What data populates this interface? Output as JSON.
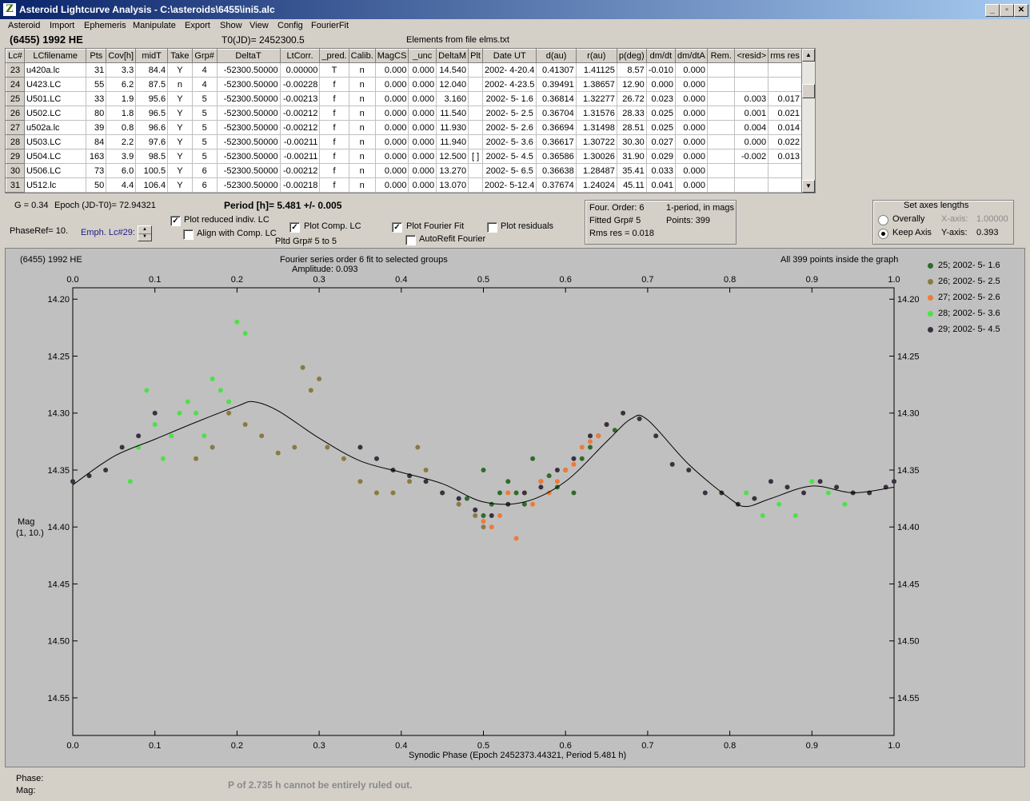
{
  "window": {
    "title": "Asteroid Lightcurve Analysis - C:\\asteroids\\6455\\ini5.alc",
    "app_icon_glyph": "Z",
    "minimize": "_",
    "restore": "▫",
    "close": "✕"
  },
  "menu": [
    "Asteroid",
    "Import",
    "Ephemeris",
    "Manipulate",
    "Export",
    "Show",
    "View",
    "Config",
    "FourierFit"
  ],
  "header": {
    "asteroid": "(6455) 1992 HE",
    "t0": "T0(JD)= 2452300.5",
    "elements": "Elements from file elms.txt"
  },
  "table": {
    "columns": [
      "Lc#",
      "LCfilename",
      "Pts",
      "Cov[h]",
      "midT",
      "Take",
      "Grp#",
      "DeltaT",
      "LtCorr.",
      "_pred.",
      "Calib.",
      "MagCS",
      "_unc",
      "DeltaM",
      "Plt",
      "Date UT",
      "d(au)",
      "r(au)",
      "p(deg)",
      "dm/dt",
      "dm/dtA",
      "Rem.",
      "<resid>",
      "rms res"
    ],
    "rows": [
      [
        "23",
        "u420a.lc",
        "31",
        "3.3",
        "84.4",
        "Y",
        "4",
        "-52300.50000",
        "0.00000",
        "T",
        "n",
        "0.000",
        "0.000",
        "14.540",
        "",
        "2002- 4-20.4",
        "0.41307",
        "1.41125",
        "8.57",
        "-0.010",
        "0.000",
        "",
        "",
        ""
      ],
      [
        "24",
        "U423.LC",
        "55",
        "6.2",
        "87.5",
        "n",
        "4",
        "-52300.50000",
        "-0.00228",
        "f",
        "n",
        "0.000",
        "0.000",
        "12.040",
        "",
        "2002- 4-23.5",
        "0.39491",
        "1.38657",
        "12.90",
        "0.000",
        "0.000",
        "",
        "",
        ""
      ],
      [
        "25",
        "U501.LC",
        "33",
        "1.9",
        "95.6",
        "Y",
        "5",
        "-52300.50000",
        "-0.00213",
        "f",
        "n",
        "0.000",
        "0.000",
        "3.160",
        "",
        "2002- 5- 1.6",
        "0.36814",
        "1.32277",
        "26.72",
        "0.023",
        "0.000",
        "",
        "0.003",
        "0.017"
      ],
      [
        "26",
        "U502.LC",
        "80",
        "1.8",
        "96.5",
        "Y",
        "5",
        "-52300.50000",
        "-0.00212",
        "f",
        "n",
        "0.000",
        "0.000",
        "11.540",
        "",
        "2002- 5- 2.5",
        "0.36704",
        "1.31576",
        "28.33",
        "0.025",
        "0.000",
        "",
        "0.001",
        "0.021"
      ],
      [
        "27",
        "u502a.lc",
        "39",
        "0.8",
        "96.6",
        "Y",
        "5",
        "-52300.50000",
        "-0.00212",
        "f",
        "n",
        "0.000",
        "0.000",
        "11.930",
        "",
        "2002- 5- 2.6",
        "0.36694",
        "1.31498",
        "28.51",
        "0.025",
        "0.000",
        "",
        "0.004",
        "0.014"
      ],
      [
        "28",
        "U503.LC",
        "84",
        "2.2",
        "97.6",
        "Y",
        "5",
        "-52300.50000",
        "-0.00211",
        "f",
        "n",
        "0.000",
        "0.000",
        "11.940",
        "",
        "2002- 5- 3.6",
        "0.36617",
        "1.30722",
        "30.30",
        "0.027",
        "0.000",
        "",
        "0.000",
        "0.022"
      ],
      [
        "29",
        "U504.LC",
        "163",
        "3.9",
        "98.5",
        "Y",
        "5",
        "-52300.50000",
        "-0.00211",
        "f",
        "n",
        "0.000",
        "0.000",
        "12.500",
        "[ ]",
        "2002- 5- 4.5",
        "0.36586",
        "1.30026",
        "31.90",
        "0.029",
        "0.000",
        "",
        "-0.002",
        "0.013"
      ],
      [
        "30",
        "U506.LC",
        "73",
        "6.0",
        "100.5",
        "Y",
        "6",
        "-52300.50000",
        "-0.00212",
        "f",
        "n",
        "0.000",
        "0.000",
        "13.270",
        "",
        "2002- 5- 6.5",
        "0.36638",
        "1.28487",
        "35.41",
        "0.033",
        "0.000",
        "",
        "",
        ""
      ],
      [
        "31",
        "U512.lc",
        "50",
        "4.4",
        "106.4",
        "Y",
        "6",
        "-52300.50000",
        "-0.00218",
        "f",
        "n",
        "0.000",
        "0.000",
        "13.070",
        "",
        "2002- 5-12.4",
        "0.37674",
        "1.24024",
        "45.11",
        "0.041",
        "0.000",
        "",
        "",
        ""
      ]
    ]
  },
  "controls": {
    "g": "G = 0.34",
    "epoch": "Epoch (JD-T0)= 72.94321",
    "period": "Period [h]= 5.481 +/- 0.005",
    "phaseref": "PhaseRef= 10.",
    "emph": "Emph. Lc#29:",
    "plot_reduced": {
      "label": "Plot reduced indiv. LC",
      "checked": true
    },
    "align_comp": {
      "label": "Align with Comp. LC",
      "checked": false
    },
    "plot_comp": {
      "label": "Plot Comp. LC",
      "checked": true
    },
    "pltd_grp": "Pltd Grp#  5  to  5",
    "plot_fourier": {
      "label": "Plot Fourier Fit",
      "checked": true
    },
    "autorefit": {
      "label": "AutoRefit Fourier",
      "checked": false
    },
    "plot_residuals": {
      "label": "Plot residuals",
      "checked": false
    },
    "four_order": "Four. Order:  6",
    "one_period": "1-period, in mags",
    "fitted_grp": "Fitted Grp# 5",
    "points": "Points: 399",
    "rms_res": "Rms res     = 0.018",
    "axes": {
      "title": "Set axes lengths",
      "overall": "Overally",
      "keep": "Keep Axis",
      "x_label": "X-axis:",
      "x_value": "1.00000",
      "y_label": "Y-axis:",
      "y_value": "0.393",
      "selected": "keep"
    }
  },
  "plot": {
    "name": "(6455) 1992 HE",
    "fourier_title": "Fourier series order 6 fit to selected groups",
    "amplitude": "Amplitude: 0.093",
    "points_inside": "All 399 points inside the graph",
    "ylabel": "Mag",
    "ylabel2": "(1, 10.)",
    "xlabel": "Synodic Phase (Epoch 2452373.44321, Period 5.481 h)"
  },
  "chart_data": {
    "type": "scatter",
    "title": "Fourier series order 6 fit to selected groups",
    "xlabel": "Synodic Phase (Epoch 2452373.44321, Period 5.481 h)",
    "ylabel": "Mag",
    "xlim": [
      0.0,
      1.0
    ],
    "ylim": [
      14.583,
      14.19
    ],
    "y_inverted": true,
    "x_ticks": [
      "0.0",
      "0.1",
      "0.2",
      "0.3",
      "0.4",
      "0.5",
      "0.6",
      "0.7",
      "0.8",
      "0.9",
      "1.0"
    ],
    "y_ticks": [
      "14.20",
      "14.25",
      "14.30",
      "14.35",
      "14.40",
      "14.45",
      "14.50",
      "14.55"
    ],
    "grid": false,
    "legend_position": "right",
    "series": [
      {
        "name": "25; 2002- 5- 1.6",
        "color": "#2f6b2a",
        "x": [
          0.48,
          0.49,
          0.5,
          0.5,
          0.51,
          0.52,
          0.53,
          0.54,
          0.55,
          0.56,
          0.57,
          0.58,
          0.59,
          0.6,
          0.61,
          0.62,
          0.63,
          0.64,
          0.65,
          0.66
        ],
        "y": [
          14.375,
          14.385,
          14.35,
          14.39,
          14.38,
          14.37,
          14.36,
          14.37,
          14.38,
          14.34,
          14.36,
          14.355,
          14.365,
          14.35,
          14.37,
          14.34,
          14.33,
          14.32,
          14.31,
          14.315
        ]
      },
      {
        "name": "26; 2002- 5- 2.5",
        "color": "#8a7a40",
        "x": [
          0.15,
          0.17,
          0.19,
          0.21,
          0.23,
          0.25,
          0.27,
          0.28,
          0.29,
          0.3,
          0.31,
          0.33,
          0.35,
          0.37,
          0.39,
          0.41,
          0.42,
          0.43,
          0.45,
          0.47,
          0.49,
          0.5
        ],
        "y": [
          14.34,
          14.33,
          14.3,
          14.31,
          14.32,
          14.335,
          14.33,
          14.26,
          14.28,
          14.27,
          14.33,
          14.34,
          14.36,
          14.37,
          14.37,
          14.36,
          14.33,
          14.35,
          14.37,
          14.38,
          14.39,
          14.4
        ]
      },
      {
        "name": "27; 2002- 5- 2.6",
        "color": "#f07a38",
        "x": [
          0.5,
          0.51,
          0.52,
          0.53,
          0.54,
          0.55,
          0.56,
          0.57,
          0.58,
          0.59,
          0.6,
          0.61,
          0.62,
          0.63,
          0.64,
          0.65
        ],
        "y": [
          14.395,
          14.4,
          14.39,
          14.37,
          14.41,
          14.37,
          14.38,
          14.36,
          14.37,
          14.36,
          14.35,
          14.345,
          14.33,
          14.325,
          14.32,
          14.31
        ]
      },
      {
        "name": "28; 2002- 5- 3.6",
        "color": "#4ee048",
        "x": [
          0.07,
          0.08,
          0.09,
          0.1,
          0.11,
          0.12,
          0.13,
          0.14,
          0.15,
          0.16,
          0.17,
          0.18,
          0.19,
          0.2,
          0.21,
          0.82,
          0.84,
          0.86,
          0.88,
          0.9,
          0.92,
          0.94,
          0.95
        ],
        "y": [
          14.36,
          14.33,
          14.28,
          14.31,
          14.34,
          14.32,
          14.3,
          14.29,
          14.3,
          14.32,
          14.27,
          14.28,
          14.29,
          14.22,
          14.23,
          14.37,
          14.39,
          14.38,
          14.39,
          14.36,
          14.37,
          14.38,
          14.37
        ]
      },
      {
        "name": "29; 2002- 5- 4.5",
        "color": "#3c3040",
        "x": [
          0.0,
          0.02,
          0.04,
          0.06,
          0.08,
          0.1,
          0.35,
          0.37,
          0.39,
          0.41,
          0.43,
          0.45,
          0.47,
          0.49,
          0.51,
          0.53,
          0.55,
          0.57,
          0.59,
          0.61,
          0.63,
          0.65,
          0.67,
          0.69,
          0.71,
          0.73,
          0.75,
          0.77,
          0.79,
          0.81,
          0.83,
          0.85,
          0.87,
          0.89,
          0.91,
          0.93,
          0.95,
          0.97,
          0.99,
          1.0
        ],
        "y": [
          14.36,
          14.355,
          14.35,
          14.33,
          14.32,
          14.3,
          14.33,
          14.34,
          14.35,
          14.355,
          14.36,
          14.37,
          14.375,
          14.385,
          14.39,
          14.38,
          14.37,
          14.365,
          14.35,
          14.34,
          14.32,
          14.31,
          14.3,
          14.305,
          14.32,
          14.345,
          14.35,
          14.37,
          14.37,
          14.38,
          14.375,
          14.36,
          14.365,
          14.37,
          14.36,
          14.365,
          14.37,
          14.37,
          14.365,
          14.36
        ]
      }
    ],
    "fit_curve": {
      "x": [
        0.0,
        0.05,
        0.1,
        0.15,
        0.2,
        0.22,
        0.25,
        0.3,
        0.35,
        0.4,
        0.45,
        0.5,
        0.55,
        0.6,
        0.65,
        0.68,
        0.7,
        0.75,
        0.8,
        0.82,
        0.85,
        0.9,
        0.95,
        1.0
      ],
      "y": [
        14.363,
        14.338,
        14.323,
        14.308,
        14.294,
        14.29,
        14.298,
        14.322,
        14.342,
        14.352,
        14.362,
        14.378,
        14.378,
        14.36,
        14.325,
        14.305,
        14.306,
        14.345,
        14.375,
        14.382,
        14.375,
        14.364,
        14.37,
        14.365
      ]
    }
  },
  "status": {
    "phase": "Phase:",
    "mag": "Mag:",
    "note": "P of 2.735 h cannot be entirely ruled out."
  }
}
